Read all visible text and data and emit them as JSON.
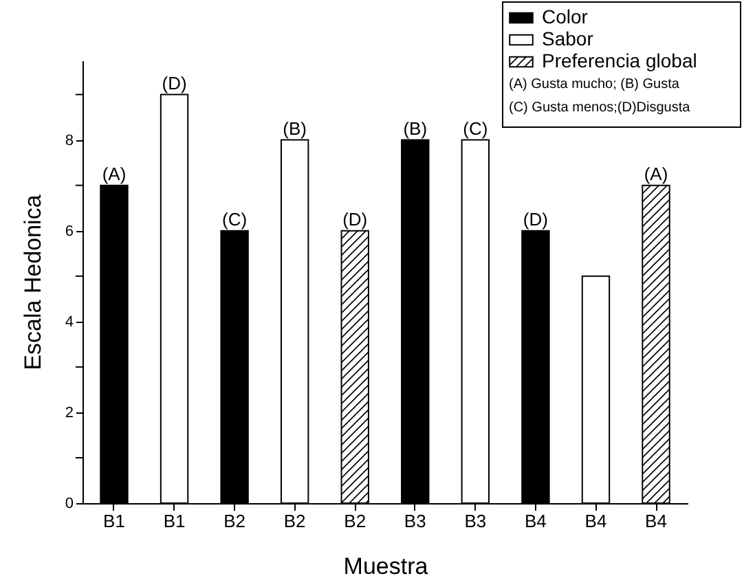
{
  "chart_data": {
    "type": "bar",
    "categories": [
      "B1",
      "B1",
      "B2",
      "B2",
      "B2",
      "B3",
      "B3",
      "B4",
      "B4",
      "B4"
    ],
    "series": [
      {
        "name": "Color",
        "color": "#000000",
        "values": [
          7,
          null,
          6,
          null,
          null,
          8,
          null,
          6,
          null,
          null
        ],
        "value_labels": [
          "(A)",
          null,
          "(C)",
          null,
          null,
          "(B)",
          null,
          "(D)",
          null,
          null
        ]
      },
      {
        "name": "Sabor",
        "color": "#ffffff",
        "values": [
          null,
          9,
          null,
          8,
          null,
          null,
          8,
          null,
          5,
          null
        ],
        "value_labels": [
          null,
          "(D)",
          null,
          "(B)",
          null,
          null,
          "(C)",
          null,
          null,
          null
        ]
      },
      {
        "name": "Preferencia global",
        "color": "#000000",
        "values": [
          null,
          null,
          null,
          null,
          6,
          null,
          null,
          null,
          null,
          7
        ],
        "value_labels": [
          null,
          null,
          null,
          null,
          "(D)",
          null,
          null,
          null,
          null,
          "(A)"
        ]
      }
    ],
    "xlabel": "Muestra",
    "ylabel": "Escala Hedonica",
    "ylim": [
      0,
      9.75
    ],
    "yticks": [
      0,
      {
        "value": 1,
        "label": null
      },
      2,
      {
        "value": 3,
        "label": null
      },
      4,
      {
        "value": 5,
        "label": null
      },
      6,
      {
        "value": 7,
        "label": null
      },
      8,
      {
        "value": 9,
        "label": null
      }
    ],
    "grid": false,
    "legend": "top right",
    "annotations": [
      "(A) Gusta mucho; (B) Gusta",
      "(C) Gusta menos;(D)Disgusta"
    ]
  }
}
